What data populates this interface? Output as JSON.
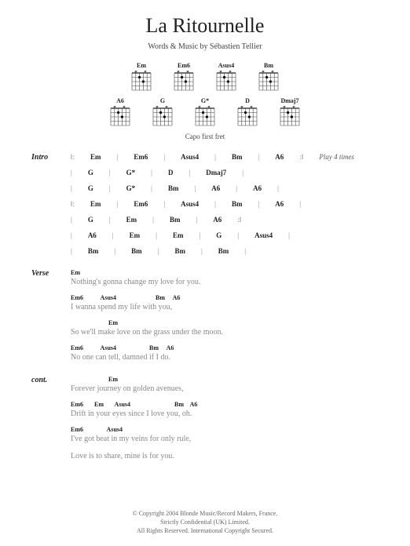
{
  "title": "La Ritournelle",
  "byline": "Words & Music by Sébastien Tellier",
  "capo_note": "Capo first fret",
  "chord_diagrams_row1": [
    {
      "name": "Em",
      "fret_label": ""
    },
    {
      "name": "Em6",
      "fret_label": ""
    },
    {
      "name": "Asus4",
      "fret_label": ""
    },
    {
      "name": "Bm",
      "fret_label": ""
    }
  ],
  "chord_diagrams_row2": [
    {
      "name": "A6",
      "fret_label": ""
    },
    {
      "name": "G",
      "fret_label": ""
    },
    {
      "name": "G*",
      "fret_label": ""
    },
    {
      "name": "D",
      "fret_label": ""
    },
    {
      "name": "Dmaj7",
      "fret_label": ""
    }
  ],
  "intro": {
    "label": "Intro",
    "lines": [
      {
        "chords": [
          "Em",
          "Em6",
          "Asus4",
          "Bm",
          "A6"
        ],
        "repeat_start": true,
        "repeat_end": true,
        "note": "Play 4 times"
      },
      {
        "chords": [
          "G",
          "G*",
          "D",
          "Dmaj7"
        ],
        "end_bar": true
      },
      {
        "chords": [
          "G",
          "G*",
          "Bm",
          "A6",
          "A6"
        ],
        "end_bar": true
      },
      {
        "chords": [
          "Em",
          "Em6",
          "Asus4",
          "Bm",
          "A6"
        ],
        "repeat_start": true,
        "end_bar": true
      },
      {
        "chords": [
          "G",
          "Em",
          "Bm",
          "A6"
        ],
        "repeat_end": true
      },
      {
        "chords": [
          "A6",
          "Em",
          "Em",
          "G",
          "Asus4"
        ],
        "end_bar": true
      },
      {
        "chords": [
          "Bm",
          "Bm",
          "Bm",
          "Bm"
        ],
        "end_bar": true
      }
    ]
  },
  "verse": {
    "label": "Verse",
    "blocks": [
      {
        "chords": "Em",
        "text": "Nothing's gonna change my love for you."
      },
      {
        "chords": "Em6           Asus4                         Bm     A6",
        "text": "     I wanna spend my life with you,"
      },
      {
        "chords": "                        Em",
        "text": "So we'll make love on the grass under the moon."
      },
      {
        "chords": "Em6           Asus4                     Bm     A6",
        "text": "     No one can tell, damned if I do."
      }
    ]
  },
  "cont": {
    "label": "cont.",
    "blocks": [
      {
        "chords": "                        Em",
        "text": "Forever journey on golden avenues,"
      },
      {
        "chords": "Em6       Em       Asus4                            Bm    A6",
        "text": "          Drift in your eyes since I love you,  oh."
      },
      {
        "chords": "Em6               Asus4",
        "text": "I've got beat in my veins for only rule,"
      },
      {
        "chords": "",
        "text": "Love is to share, mine is for you."
      }
    ]
  },
  "footer": {
    "line1": "© Copyright 2004 Blonde Music/Record Makers, France.",
    "line2": "Strictly Confidential (UK) Limited.",
    "line3": "All Rights Reserved. International Copyright Secured."
  },
  "grid_color": "#444444",
  "dot_color": "#000000"
}
